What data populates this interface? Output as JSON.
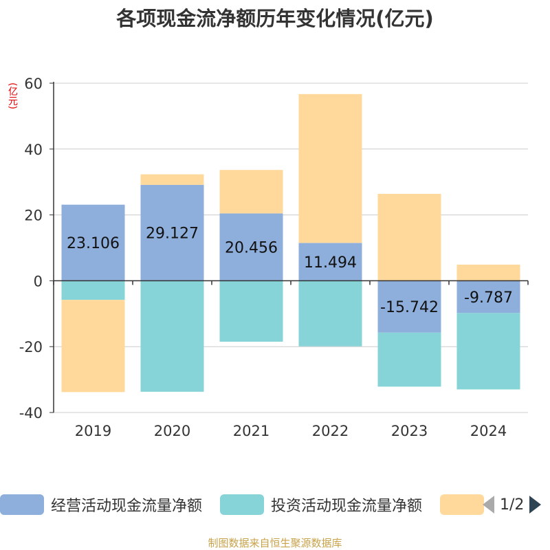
{
  "title": "各项现金流净额历年变化情况(亿元)",
  "unit_label": "(亿元)",
  "source": "制图数据来自恒生聚源数据库",
  "colors": {
    "operating": "#8eaedb",
    "investing": "#86d4d8",
    "financing": "#fed99b",
    "axis": "#333333",
    "grid": "#cccccc"
  },
  "legend": {
    "items": [
      {
        "label": "经营活动现金流量净额",
        "color": "#8eaedb"
      },
      {
        "label": "投资活动现金流量净额",
        "color": "#86d4d8"
      },
      {
        "label": "",
        "color": "#fed99b"
      }
    ],
    "page": "1/2"
  },
  "chart_data": {
    "type": "bar",
    "stacked": true,
    "categories": [
      "2019",
      "2020",
      "2021",
      "2022",
      "2023",
      "2024"
    ],
    "series": [
      {
        "name": "经营活动现金流量净额",
        "values": [
          23.106,
          29.127,
          20.456,
          11.494,
          -15.742,
          -9.787
        ],
        "labels": [
          "23.106",
          "29.127",
          "20.456",
          "11.494",
          "-15.742",
          "-9.787"
        ]
      },
      {
        "name": "投资活动现金流量净额",
        "values": [
          -5.8,
          -33.7,
          -18.5,
          -19.9,
          -16.4,
          -23.2
        ]
      },
      {
        "values": [
          -28.0,
          3.2,
          13.2,
          45.2,
          26.4,
          4.9
        ]
      }
    ],
    "ylim": [
      -40,
      60
    ],
    "yticks": [
      "-40",
      "-20",
      "0",
      "20",
      "40",
      "60"
    ],
    "grid": true
  }
}
